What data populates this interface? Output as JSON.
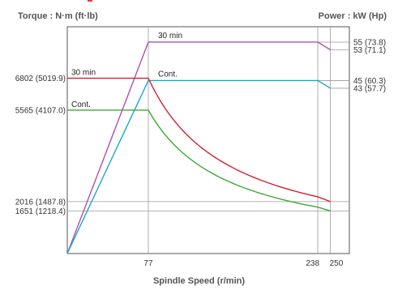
{
  "chart_data": {
    "type": "line",
    "xlabel": "Spindle Speed (r/min)",
    "ylabel_left": "Torque : N·m (ft·lb)",
    "ylabel_right": "Power : kW (Hp)",
    "x_ticks": [
      "77",
      "238",
      "250"
    ],
    "torque_ticks": [
      "6802 (5019.9)",
      "5565 (4107.0)",
      "2016 (1487.8)",
      "1651 (1218.4)"
    ],
    "power_ticks": [
      "55 (73.8)",
      "53 (71.1)",
      "45 (60.3)",
      "43 (57.7)"
    ],
    "torque_range": [
      0,
      8800
    ],
    "power_range": [
      0,
      59
    ],
    "x_range": [
      0,
      268
    ],
    "grid": true,
    "series": [
      {
        "name": "30 min",
        "axis": "power",
        "color": "#b050b0",
        "x": [
          0,
          77,
          238,
          250
        ],
        "y": [
          0,
          55,
          55,
          53
        ]
      },
      {
        "name": "Cont.",
        "axis": "power",
        "color": "#1aa7cc",
        "x": [
          0,
          77,
          238,
          250
        ],
        "y": [
          0,
          45,
          45,
          43
        ]
      },
      {
        "name": "30 min",
        "axis": "torque",
        "color": "#d3202e",
        "x": [
          0,
          77,
          238,
          250
        ],
        "y": [
          6802,
          6802,
          2205,
          2016
        ]
      },
      {
        "name": "Cont.",
        "axis": "torque",
        "color": "#3aaa35",
        "x": [
          0,
          77,
          238,
          250
        ],
        "y": [
          5565,
          5565,
          1803,
          1651
        ]
      }
    ]
  }
}
